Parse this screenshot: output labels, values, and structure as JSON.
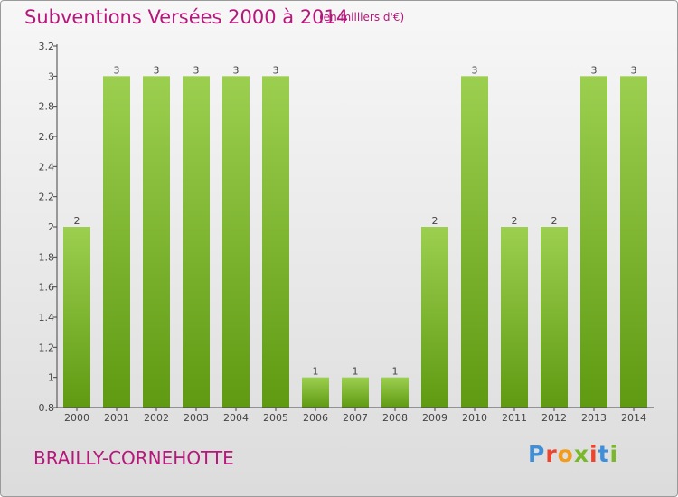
{
  "header": {
    "title": "Subventions Versées 2000 à 2014",
    "subtitle": "(en milliers d'€)"
  },
  "footer": {
    "place": "BRAILLY-CORNEHOTTE",
    "logo": {
      "text": "Proxiti",
      "letter_colors": [
        "#3f8fd8",
        "#e9452f",
        "#f39c1b",
        "#79b829",
        "#e9452f",
        "#3f8fd8",
        "#79b829"
      ]
    }
  },
  "colors": {
    "title": "#b5177a",
    "bar_top": "#9ccf4f",
    "bar_bottom": "#5f9a12",
    "axis": "#444444",
    "label": "#444444"
  },
  "chart_data": {
    "type": "bar",
    "title": "Subventions Versées 2000 à 2014",
    "subtitle": "(en milliers d'€)",
    "categories": [
      "2000",
      "2001",
      "2002",
      "2003",
      "2004",
      "2005",
      "2006",
      "2007",
      "2008",
      "2009",
      "2010",
      "2011",
      "2012",
      "2013",
      "2014"
    ],
    "values": [
      2,
      3,
      3,
      3,
      3,
      3,
      1,
      1,
      1,
      2,
      3,
      2,
      2,
      3,
      3
    ],
    "data_labels": [
      "2",
      "3",
      "3",
      "3",
      "3",
      "3",
      "1",
      "1",
      "1",
      "2",
      "3",
      "2",
      "2",
      "3",
      "3"
    ],
    "y_ticks": [
      "0.8",
      "1",
      "1.2",
      "1.4",
      "1.6",
      "1.8",
      "2",
      "2.2",
      "2.4",
      "2.6",
      "2.8",
      "3",
      "3.2"
    ],
    "tick_row_positions": [
      0.8,
      1.0,
      1.2,
      1.4,
      1.6,
      1.8,
      2.0,
      2.2,
      2.4,
      2.6,
      2.8,
      3.0,
      3.2
    ],
    "ylim": [
      0.8,
      3.2
    ],
    "grid": false,
    "xlabel": "",
    "ylabel": ""
  }
}
